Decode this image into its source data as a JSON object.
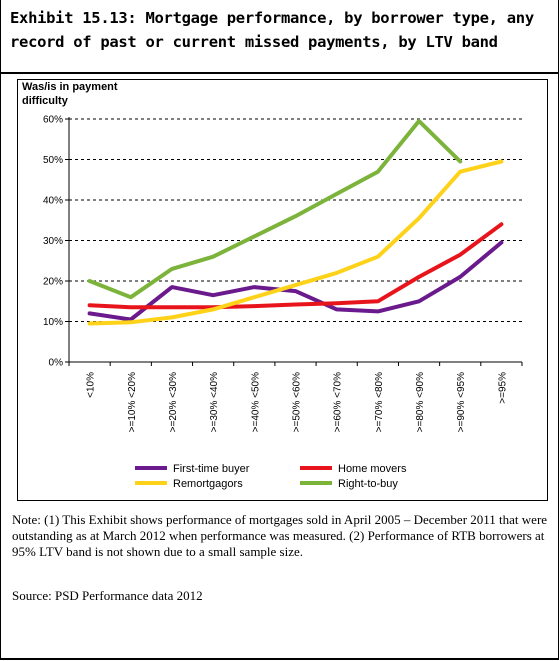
{
  "exhibit": {
    "title": "Exhibit 15.13: Mortgage performance, by borrower type, any record of past or current missed payments, by LTV band"
  },
  "chart_data": {
    "type": "line",
    "ylabel": "Was/is in payment difficulty",
    "xlabel": "",
    "ylim": [
      0,
      60
    ],
    "yticks": [
      "0%",
      "10%",
      "20%",
      "30%",
      "40%",
      "50%",
      "60%"
    ],
    "grid": "horizontal dashed",
    "legend_position": "bottom",
    "categories": [
      "<10%",
      ">=10% <20%",
      ">=20% <30%",
      ">=30% <40%",
      ">=40% <50%",
      ">=50% <60%",
      ">=60% <70%",
      ">=70% <80%",
      ">=80% <90%",
      ">=90% <95%",
      ">=95%"
    ],
    "series": [
      {
        "name": "First-time buyer",
        "color": "#6a1a8c",
        "values": [
          12,
          10.5,
          18.5,
          16.5,
          18.5,
          17.5,
          13,
          12.5,
          15,
          21,
          29.5
        ]
      },
      {
        "name": "Home movers",
        "color": "#e8141c",
        "values": [
          14,
          13.5,
          13.5,
          13.5,
          13.8,
          14.2,
          14.5,
          15,
          21,
          26.5,
          34
        ]
      },
      {
        "name": "Remortgagors",
        "color": "#ffd21a",
        "values": [
          9.5,
          9.8,
          11,
          13,
          16,
          19,
          22,
          26,
          35.5,
          47,
          49.5
        ]
      },
      {
        "name": "Right-to-buy",
        "color": "#7bb33b",
        "values": [
          20,
          16,
          23,
          26,
          31,
          36,
          41.5,
          47,
          59.5,
          49.5,
          null
        ]
      }
    ]
  },
  "note": "Note: (1) This Exhibit shows performance of mortgages sold in April 2005 – December 2011 that were outstanding as at March 2012 when performance was measured. (2) Performance of RTB borrowers at 95% LTV band is not shown due to a small sample size.",
  "source": "Source: PSD Performance data 2012"
}
